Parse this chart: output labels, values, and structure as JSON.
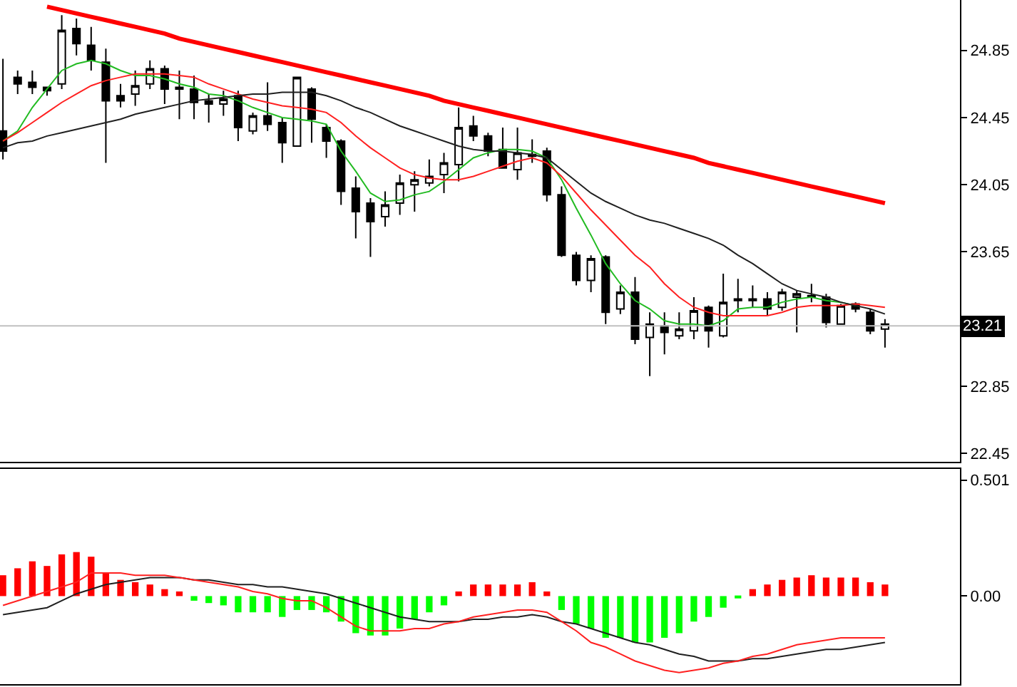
{
  "chart_data": [
    {
      "type": "candlestick",
      "categories": [
        null,
        null,
        null,
        null,
        null,
        null,
        null,
        null,
        null,
        null,
        null,
        null,
        null,
        null,
        null,
        null,
        null,
        null,
        null,
        null,
        null,
        null,
        null,
        null,
        null,
        null,
        null,
        null,
        null,
        null,
        null,
        null,
        null,
        null,
        null,
        null,
        null,
        null,
        null,
        null,
        null,
        null,
        null,
        null,
        null,
        null,
        null,
        null,
        null,
        null,
        null,
        null,
        null,
        null,
        null,
        null,
        null,
        null,
        null,
        null,
        null
      ],
      "ohlc": [
        [
          24.37,
          24.8,
          24.2,
          24.25
        ],
        [
          24.69,
          24.73,
          24.59,
          24.65
        ],
        [
          24.66,
          24.73,
          24.59,
          24.63
        ],
        [
          24.63,
          24.63,
          24.58,
          24.61
        ],
        [
          24.65,
          25.06,
          24.62,
          24.97
        ],
        [
          24.98,
          25.04,
          24.82,
          24.89
        ],
        [
          24.88,
          24.99,
          24.73,
          24.79
        ],
        [
          24.78,
          24.86,
          24.18,
          24.55
        ],
        [
          24.58,
          24.65,
          24.51,
          24.55
        ],
        [
          24.59,
          24.73,
          24.52,
          24.64
        ],
        [
          24.65,
          24.79,
          24.62,
          24.74
        ],
        [
          24.74,
          24.76,
          24.53,
          24.62
        ],
        [
          24.63,
          24.73,
          24.44,
          24.62
        ],
        [
          24.62,
          24.7,
          24.44,
          24.54
        ],
        [
          24.55,
          24.59,
          24.42,
          24.53
        ],
        [
          24.53,
          24.61,
          24.46,
          24.56
        ],
        [
          24.58,
          24.61,
          24.31,
          24.39
        ],
        [
          24.37,
          24.48,
          24.35,
          24.46
        ],
        [
          24.46,
          24.66,
          24.37,
          24.41
        ],
        [
          24.42,
          24.45,
          24.18,
          24.3
        ],
        [
          24.28,
          24.69,
          24.28,
          24.69
        ],
        [
          24.62,
          24.63,
          24.3,
          24.44
        ],
        [
          24.39,
          24.41,
          24.21,
          24.31
        ],
        [
          24.31,
          24.32,
          23.93,
          24.01
        ],
        [
          24.03,
          24.1,
          23.73,
          23.89
        ],
        [
          23.94,
          23.97,
          23.62,
          23.83
        ],
        [
          23.86,
          24.01,
          23.8,
          23.93
        ],
        [
          23.94,
          24.11,
          23.87,
          24.06
        ],
        [
          24.05,
          24.13,
          23.89,
          24.08
        ],
        [
          24.06,
          24.2,
          24.04,
          24.1
        ],
        [
          24.11,
          24.24,
          24.0,
          24.18
        ],
        [
          24.17,
          24.51,
          24.07,
          24.39
        ],
        [
          24.4,
          24.46,
          24.31,
          24.34
        ],
        [
          24.34,
          24.36,
          24.22,
          24.25
        ],
        [
          24.26,
          24.39,
          24.15,
          24.15
        ],
        [
          24.14,
          24.39,
          24.08,
          24.24
        ],
        [
          24.22,
          24.32,
          24.18,
          24.23
        ],
        [
          24.25,
          24.27,
          23.95,
          23.99
        ],
        [
          23.99,
          24.04,
          23.62,
          23.63
        ],
        [
          23.63,
          23.65,
          23.45,
          23.48
        ],
        [
          23.48,
          23.63,
          23.41,
          23.61
        ],
        [
          23.62,
          23.63,
          23.22,
          23.29
        ],
        [
          23.31,
          23.45,
          23.28,
          23.41
        ],
        [
          23.41,
          23.5,
          23.1,
          23.13
        ],
        [
          23.14,
          23.29,
          22.91,
          23.22
        ],
        [
          23.21,
          23.29,
          23.04,
          23.17
        ],
        [
          23.15,
          23.29,
          23.13,
          23.19
        ],
        [
          23.18,
          23.38,
          23.13,
          23.3
        ],
        [
          23.32,
          23.33,
          23.08,
          23.18
        ],
        [
          23.15,
          23.52,
          23.14,
          23.35
        ],
        [
          23.36,
          23.49,
          23.29,
          23.37
        ],
        [
          23.36,
          23.45,
          23.32,
          23.37
        ],
        [
          23.37,
          23.41,
          23.27,
          23.31
        ],
        [
          23.32,
          23.43,
          23.3,
          23.41
        ],
        [
          23.38,
          23.42,
          23.17,
          23.4
        ],
        [
          23.38,
          23.46,
          23.35,
          23.39
        ],
        [
          23.38,
          23.4,
          23.2,
          23.23
        ],
        [
          23.22,
          23.34,
          23.22,
          23.33
        ],
        [
          23.34,
          23.35,
          23.29,
          23.31
        ],
        [
          23.29,
          23.31,
          23.16,
          23.18
        ],
        [
          23.19,
          23.25,
          23.08,
          23.22
        ]
      ],
      "series": [
        {
          "type": "line",
          "color": "#22bb22",
          "values": [
            24.31,
            24.37,
            24.51,
            24.62,
            24.73,
            24.77,
            24.79,
            24.77,
            24.73,
            24.7,
            24.7,
            24.68,
            24.65,
            24.63,
            24.59,
            24.58,
            24.55,
            24.51,
            24.48,
            24.45,
            24.44,
            24.43,
            24.41,
            24.25,
            24.13,
            24.0,
            23.95,
            23.96,
            23.99,
            24.01,
            24.07,
            24.14,
            24.21,
            24.24,
            24.26,
            24.26,
            24.25,
            24.21,
            24.08,
            23.91,
            23.75,
            23.58,
            23.46,
            23.36,
            23.31,
            23.24,
            23.22,
            23.22,
            23.21,
            23.24,
            23.31,
            23.32,
            23.32,
            23.35,
            23.37,
            23.38,
            23.36,
            23.35,
            23.33,
            null,
            null
          ]
        },
        {
          "type": "line",
          "color": "#ff2020",
          "values": [
            24.31,
            24.36,
            24.42,
            24.48,
            24.54,
            24.59,
            24.64,
            24.67,
            24.69,
            24.71,
            24.71,
            24.71,
            24.7,
            24.69,
            24.65,
            24.62,
            24.59,
            24.56,
            24.54,
            24.52,
            24.51,
            24.5,
            24.48,
            24.42,
            24.34,
            24.27,
            24.21,
            24.15,
            24.11,
            24.09,
            24.08,
            24.08,
            24.1,
            24.13,
            24.16,
            24.19,
            24.21,
            24.18,
            24.1,
            24.0,
            23.9,
            23.81,
            23.72,
            23.63,
            23.56,
            23.46,
            23.38,
            23.32,
            23.29,
            23.27,
            23.27,
            23.27,
            23.27,
            23.29,
            23.32,
            23.33,
            23.33,
            23.33,
            23.34,
            23.33,
            23.32
          ]
        },
        {
          "type": "line",
          "color": "#202020",
          "values": [
            24.27,
            24.3,
            24.31,
            24.34,
            24.36,
            24.38,
            24.4,
            24.42,
            24.44,
            24.47,
            24.49,
            24.51,
            24.53,
            24.55,
            24.56,
            24.57,
            24.58,
            24.59,
            24.59,
            24.6,
            24.6,
            24.6,
            24.58,
            24.55,
            24.51,
            24.48,
            24.44,
            24.4,
            24.37,
            24.34,
            24.31,
            24.28,
            24.26,
            24.25,
            24.25,
            24.24,
            24.23,
            24.21,
            24.14,
            24.07,
            24.0,
            23.95,
            23.91,
            23.87,
            23.84,
            23.82,
            23.79,
            23.76,
            23.73,
            23.69,
            23.63,
            23.58,
            23.52,
            23.46,
            23.42,
            23.4,
            23.38,
            23.35,
            23.33,
            23.31,
            23.28
          ]
        },
        {
          "type": "line",
          "color": "#ff0000",
          "values": [
            null,
            null,
            null,
            25.11,
            25.09,
            25.07,
            25.05,
            25.03,
            25.01,
            24.99,
            24.97,
            24.95,
            24.92,
            24.9,
            24.88,
            24.86,
            24.84,
            24.82,
            24.8,
            24.78,
            24.76,
            24.74,
            24.72,
            24.7,
            24.68,
            24.66,
            24.64,
            24.62,
            24.6,
            24.58,
            24.55,
            24.53,
            24.51,
            24.49,
            24.47,
            24.45,
            24.43,
            24.41,
            24.39,
            24.37,
            24.35,
            24.33,
            24.31,
            24.29,
            24.27,
            24.25,
            24.23,
            24.21,
            24.18,
            24.16,
            24.14,
            24.12,
            24.1,
            24.08,
            24.06,
            24.04,
            24.02,
            24.0,
            23.98,
            23.96,
            23.94
          ]
        }
      ],
      "ylim": [
        22.4,
        25.15
      ],
      "yticks": [
        22.45,
        22.85,
        23.65,
        24.05,
        24.45,
        24.85
      ],
      "ref_lines": [
        {
          "axis": "y",
          "value": 23.21,
          "label": "23.21",
          "color": "#c0c0c0"
        }
      ],
      "tick_labels": "y",
      "grid": false
    },
    {
      "type": "bar",
      "categories": [
        null,
        null,
        null,
        null,
        null,
        null,
        null,
        null,
        null,
        null,
        null,
        null,
        null,
        null,
        null,
        null,
        null,
        null,
        null,
        null,
        null,
        null,
        null,
        null,
        null,
        null,
        null,
        null,
        null,
        null,
        null,
        null,
        null,
        null,
        null,
        null,
        null,
        null,
        null,
        null,
        null,
        null,
        null,
        null,
        null,
        null,
        null,
        null,
        null,
        null,
        null,
        null,
        null,
        null,
        null,
        null,
        null,
        null,
        null,
        null,
        null
      ],
      "series": [
        {
          "type": "bar",
          "values": [
            0.09,
            0.12,
            0.15,
            0.13,
            0.18,
            0.19,
            0.17,
            0.1,
            0.07,
            0.06,
            0.05,
            0.03,
            0.02,
            -0.02,
            -0.03,
            -0.04,
            -0.07,
            -0.07,
            -0.07,
            -0.09,
            -0.06,
            -0.06,
            -0.07,
            -0.11,
            -0.16,
            -0.17,
            -0.17,
            -0.14,
            -0.1,
            -0.07,
            -0.04,
            0.02,
            0.05,
            0.05,
            0.05,
            0.05,
            0.06,
            0.02,
            -0.06,
            -0.12,
            -0.14,
            -0.18,
            -0.18,
            -0.2,
            -0.2,
            -0.18,
            -0.16,
            -0.11,
            -0.09,
            -0.05,
            -0.01,
            0.03,
            0.05,
            0.07,
            0.08,
            0.09,
            0.08,
            0.08,
            0.08,
            0.06,
            0.05
          ],
          "colors": [
            "#ff0000",
            "#ff0000",
            "#ff0000",
            "#ff0000",
            "#ff0000",
            "#ff0000",
            "#ff0000",
            "#ff0000",
            "#ff0000",
            "#ff0000",
            "#ff0000",
            "#ff0000",
            "#ff0000",
            "#00ff00",
            "#00ff00",
            "#00ff00",
            "#00ff00",
            "#00ff00",
            "#00ff00",
            "#00ff00",
            "#00ff00",
            "#00ff00",
            "#00ff00",
            "#00ff00",
            "#00ff00",
            "#00ff00",
            "#00ff00",
            "#00ff00",
            "#00ff00",
            "#00ff00",
            "#00ff00",
            "#ff0000",
            "#ff0000",
            "#ff0000",
            "#ff0000",
            "#ff0000",
            "#ff0000",
            "#ff0000",
            "#00ff00",
            "#00ff00",
            "#00ff00",
            "#00ff00",
            "#00ff00",
            "#00ff00",
            "#00ff00",
            "#00ff00",
            "#00ff00",
            "#00ff00",
            "#00ff00",
            "#00ff00",
            "#00ff00",
            "#ff0000",
            "#ff0000",
            "#ff0000",
            "#ff0000",
            "#ff0000",
            "#ff0000",
            "#ff0000",
            "#ff0000",
            "#ff0000",
            "#ff0000"
          ]
        },
        {
          "type": "line",
          "color": "#202020",
          "values": [
            -0.08,
            -0.07,
            -0.06,
            -0.05,
            -0.02,
            0.01,
            0.03,
            0.05,
            0.06,
            0.07,
            0.08,
            0.08,
            0.08,
            0.07,
            0.07,
            0.06,
            0.05,
            0.05,
            0.04,
            0.04,
            0.03,
            0.02,
            0.01,
            -0.01,
            -0.03,
            -0.05,
            -0.07,
            -0.09,
            -0.1,
            -0.11,
            -0.11,
            -0.11,
            -0.1,
            -0.1,
            -0.09,
            -0.09,
            -0.08,
            -0.09,
            -0.11,
            -0.12,
            -0.14,
            -0.16,
            -0.18,
            -0.2,
            -0.21,
            -0.23,
            -0.25,
            -0.26,
            -0.28,
            -0.28,
            -0.28,
            -0.27,
            -0.27,
            -0.26,
            -0.25,
            -0.24,
            -0.23,
            -0.23,
            -0.22,
            -0.21,
            -0.2
          ]
        },
        {
          "type": "line",
          "color": "#ff2020",
          "values": [
            -0.04,
            -0.02,
            0.0,
            0.02,
            0.04,
            0.06,
            0.1,
            0.1,
            0.1,
            0.09,
            0.09,
            0.09,
            0.08,
            0.07,
            0.06,
            0.05,
            0.04,
            0.02,
            0.01,
            -0.01,
            -0.02,
            -0.02,
            -0.05,
            -0.09,
            -0.13,
            -0.15,
            -0.15,
            -0.15,
            -0.14,
            -0.14,
            -0.12,
            -0.11,
            -0.09,
            -0.08,
            -0.07,
            -0.06,
            -0.06,
            -0.07,
            -0.11,
            -0.15,
            -0.2,
            -0.22,
            -0.25,
            -0.28,
            -0.3,
            -0.32,
            -0.33,
            -0.32,
            -0.31,
            -0.29,
            -0.28,
            -0.26,
            -0.25,
            -0.23,
            -0.21,
            -0.2,
            -0.19,
            -0.18,
            -0.18,
            -0.18,
            -0.18
          ]
        }
      ],
      "ylim": [
        -0.38,
        0.55
      ],
      "yticks": [
        {
          "value": 0,
          "label": "0.00"
        },
        0.501
      ],
      "tick_labels": "y",
      "grid": false
    }
  ]
}
